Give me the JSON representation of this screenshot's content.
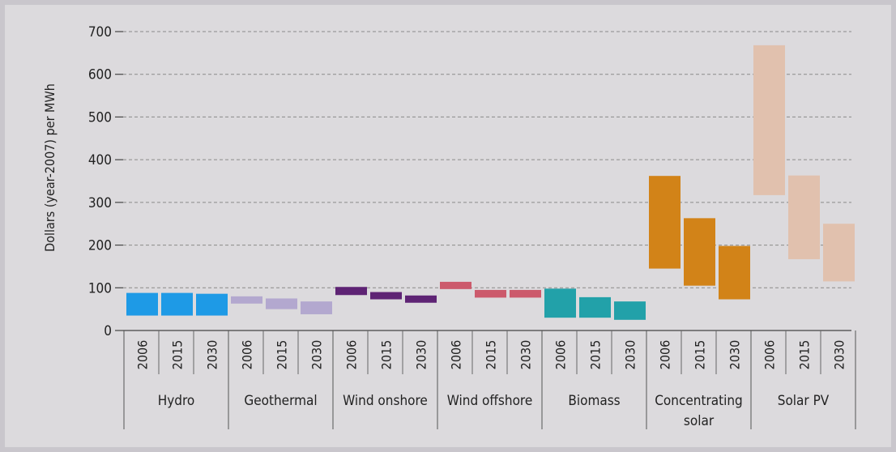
{
  "chart_data": {
    "type": "bar",
    "chart_style": "floating range bars",
    "ylabel": "Dollars (year-2007) per MWh",
    "ylim": [
      0,
      700
    ],
    "yticks": [
      "0",
      "100",
      "200",
      "300",
      "400",
      "500",
      "600",
      "700"
    ],
    "grid": true,
    "groups": [
      {
        "name": "Hydro",
        "color": "#1e9ae6",
        "bars": [
          {
            "year": "2006",
            "low": 35,
            "high": 88
          },
          {
            "year": "2015",
            "low": 35,
            "high": 88
          },
          {
            "year": "2030",
            "low": 35,
            "high": 86
          }
        ]
      },
      {
        "name": "Geothermal",
        "color": "#b3a8cf",
        "bars": [
          {
            "year": "2006",
            "low": 63,
            "high": 80
          },
          {
            "year": "2015",
            "low": 50,
            "high": 75
          },
          {
            "year": "2030",
            "low": 38,
            "high": 68
          }
        ]
      },
      {
        "name": "Wind onshore",
        "color": "#5e2374",
        "bars": [
          {
            "year": "2006",
            "low": 83,
            "high": 102
          },
          {
            "year": "2015",
            "low": 73,
            "high": 90
          },
          {
            "year": "2030",
            "low": 65,
            "high": 82
          }
        ]
      },
      {
        "name": "Wind offshore",
        "color": "#cc5a6c",
        "bars": [
          {
            "year": "2006",
            "low": 97,
            "high": 114
          },
          {
            "year": "2015",
            "low": 77,
            "high": 95
          },
          {
            "year": "2030",
            "low": 77,
            "high": 95
          }
        ]
      },
      {
        "name": "Biomass",
        "color": "#22a1a9",
        "bars": [
          {
            "year": "2006",
            "low": 30,
            "high": 98
          },
          {
            "year": "2015",
            "low": 30,
            "high": 78
          },
          {
            "year": "2030",
            "low": 25,
            "high": 68
          }
        ]
      },
      {
        "name": "Concentrating solar",
        "label_lines": [
          "Concentrating",
          "solar"
        ],
        "color": "#d28318",
        "bars": [
          {
            "year": "2006",
            "low": 145,
            "high": 362
          },
          {
            "year": "2015",
            "low": 105,
            "high": 263
          },
          {
            "year": "2030",
            "low": 73,
            "high": 198
          }
        ]
      },
      {
        "name": "Solar PV",
        "color": "#e1c1ae",
        "bars": [
          {
            "year": "2006",
            "low": 317,
            "high": 668
          },
          {
            "year": "2015",
            "low": 167,
            "high": 363
          },
          {
            "year": "2030",
            "low": 115,
            "high": 250
          }
        ]
      }
    ]
  }
}
